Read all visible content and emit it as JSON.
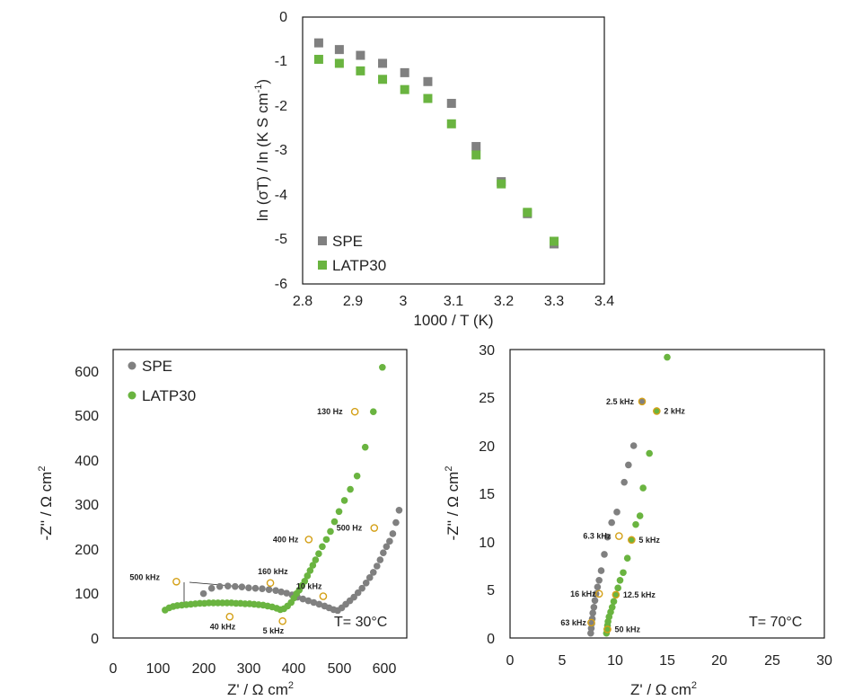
{
  "colors": {
    "spe": "#808080",
    "latp": "#6ab440",
    "marker_ring": "#d4a017",
    "frame": "#1a1a1a"
  },
  "chart_data": [
    {
      "id": "arrhenius",
      "type": "scatter",
      "marker": "square",
      "xlabel": "1000 / T (K)",
      "ylabel": "ln (σT) / ln (K S cm",
      "ylabel_sup": "-1",
      "ylabel_tail": ")",
      "xlim": [
        2.8,
        3.4
      ],
      "ylim": [
        -6,
        0
      ],
      "xticks": [
        "2.8",
        "2.9",
        "3",
        "3.1",
        "3.2",
        "3.3",
        "3.4"
      ],
      "yticks": [
        "0",
        "-1",
        "-2",
        "-3",
        "-4",
        "-5",
        "-6"
      ],
      "legend": [
        "SPE",
        "LATP30"
      ],
      "series": [
        {
          "name": "SPE",
          "color": "#808080",
          "x": [
            2.832,
            2.873,
            2.915,
            2.959,
            3.003,
            3.049,
            3.096,
            3.145,
            3.195,
            3.247,
            3.3
          ],
          "y": [
            -0.58,
            -0.73,
            -0.86,
            -1.04,
            -1.25,
            -1.45,
            -1.94,
            -2.91,
            -3.7,
            -4.42,
            -5.1
          ]
        },
        {
          "name": "LATP30",
          "color": "#6ab440",
          "x": [
            2.832,
            2.873,
            2.915,
            2.959,
            3.003,
            3.049,
            3.096,
            3.145,
            3.195,
            3.247,
            3.3
          ],
          "y": [
            -0.95,
            -1.04,
            -1.21,
            -1.4,
            -1.63,
            -1.83,
            -2.4,
            -3.1,
            -3.75,
            -4.39,
            -5.04
          ]
        }
      ]
    },
    {
      "id": "nyquist30",
      "type": "scatter",
      "marker": "circle",
      "xlabel": "Z' / Ω cm",
      "xlabel_sup": "2",
      "ylabel": "-Z'' / Ω cm",
      "ylabel_sup": "2",
      "xlim": [
        0,
        650
      ],
      "ylim": [
        0,
        650
      ],
      "xticks": [
        "0",
        "100",
        "200",
        "300",
        "400",
        "500",
        "600"
      ],
      "yticks": [
        "0",
        "100",
        "200",
        "300",
        "400",
        "500",
        "600"
      ],
      "legend": [
        "SPE",
        "LATP30"
      ],
      "temperature": "T= 30°C",
      "series": [
        {
          "name": "SPE",
          "color": "#808080",
          "x": [
            200,
            218,
            236,
            254,
            270,
            285,
            300,
            315,
            330,
            345,
            360,
            372,
            384,
            396,
            408,
            420,
            432,
            444,
            456,
            468,
            478,
            488,
            497,
            506,
            515,
            524,
            533,
            542,
            551,
            560,
            568,
            576,
            584,
            591,
            598,
            605,
            612,
            619,
            626,
            633
          ],
          "y": [
            100,
            112,
            116,
            117,
            116,
            115,
            113,
            112,
            111,
            109,
            107,
            104,
            101,
            97,
            92,
            88,
            84,
            80,
            76,
            72,
            68,
            64,
            62,
            68,
            76,
            84,
            92,
            102,
            112,
            124,
            136,
            148,
            162,
            176,
            192,
            206,
            218,
            235,
            260,
            288
          ]
        },
        {
          "name": "LATP30",
          "color": "#6ab440",
          "x": [
            115,
            124,
            133,
            142,
            152,
            162,
            172,
            182,
            192,
            202,
            212,
            222,
            232,
            242,
            252,
            262,
            272,
            282,
            292,
            302,
            312,
            322,
            332,
            342,
            352,
            362,
            370,
            378,
            386,
            394,
            400,
            406,
            412,
            418,
            424,
            430,
            436,
            442,
            448,
            455,
            463,
            472,
            481,
            490,
            500,
            512,
            525,
            540,
            558,
            576,
            596
          ],
          "y": [
            63,
            68,
            71,
            73,
            74,
            75,
            76,
            77,
            78,
            78,
            79,
            79,
            79,
            79,
            79,
            79,
            78,
            78,
            77,
            77,
            76,
            75,
            74,
            72,
            70,
            67,
            64,
            66,
            72,
            80,
            90,
            100,
            108,
            118,
            128,
            140,
            152,
            164,
            176,
            190,
            206,
            222,
            240,
            262,
            285,
            310,
            335,
            365,
            430,
            510,
            610
          ]
        }
      ],
      "annotations": [
        {
          "label": "500 kHz",
          "x": 140,
          "y": 127
        },
        {
          "label": "160 kHz",
          "x": 348,
          "y": 124
        },
        {
          "label": "10 kHz",
          "x": 465,
          "y": 94
        },
        {
          "label": "40 kHz",
          "x": 258,
          "y": 48
        },
        {
          "label": "5 kHz",
          "x": 375,
          "y": 38
        },
        {
          "label": "400 Hz",
          "x": 433,
          "y": 222
        },
        {
          "label": "500 Hz",
          "x": 578,
          "y": 248
        },
        {
          "label": "130 Hz",
          "x": 535,
          "y": 510
        }
      ]
    },
    {
      "id": "nyquist70",
      "type": "scatter",
      "marker": "circle",
      "xlabel": "Z' / Ω cm",
      "xlabel_sup": "2",
      "ylabel": "-Z'' / Ω cm",
      "ylabel_sup": "2",
      "xlim": [
        0,
        30
      ],
      "ylim": [
        0,
        30
      ],
      "xticks": [
        "0",
        "5",
        "10",
        "15",
        "20",
        "25",
        "30"
      ],
      "yticks": [
        "0",
        "5",
        "10",
        "15",
        "20",
        "25",
        "30"
      ],
      "temperature": "T= 70°C",
      "series": [
        {
          "name": "SPE",
          "color": "#808080",
          "x": [
            7.7,
            7.75,
            7.8,
            7.85,
            7.9,
            8.0,
            8.1,
            8.2,
            8.35,
            8.5,
            8.7,
            9.0,
            9.3,
            9.7,
            10.2,
            10.9,
            11.3,
            11.8,
            12.6
          ],
          "y": [
            0.5,
            1.0,
            1.5,
            2.0,
            2.6,
            3.2,
            3.9,
            4.6,
            5.3,
            6.0,
            7.0,
            8.7,
            10.5,
            12.0,
            13.1,
            16.2,
            18.0,
            20.0,
            24.6
          ]
        },
        {
          "name": "LATP30",
          "color": "#6ab440",
          "x": [
            9.2,
            9.25,
            9.3,
            9.35,
            9.45,
            9.6,
            9.75,
            9.9,
            10.1,
            10.3,
            10.5,
            10.8,
            11.2,
            11.6,
            12.0,
            12.4,
            12.7,
            13.3,
            14.0,
            15.0
          ],
          "y": [
            0.5,
            0.9,
            1.3,
            1.7,
            2.2,
            2.7,
            3.2,
            3.8,
            4.5,
            5.2,
            6.0,
            6.8,
            8.3,
            10.2,
            11.8,
            12.7,
            15.6,
            19.2,
            23.6,
            29.2
          ]
        }
      ],
      "annotations": [
        {
          "label": "2.5 kHz",
          "x": 12.6,
          "y": 24.6
        },
        {
          "label": "2 kHz",
          "x": 14.0,
          "y": 23.6
        },
        {
          "label": "6.3 kHz",
          "x": 10.4,
          "y": 10.6
        },
        {
          "label": "5 kHz",
          "x": 11.6,
          "y": 10.2
        },
        {
          "label": "16 kHz",
          "x": 8.5,
          "y": 4.6
        },
        {
          "label": "12.5 kHz",
          "x": 10.1,
          "y": 4.5
        },
        {
          "label": "63 kHz",
          "x": 7.75,
          "y": 1.6
        },
        {
          "label": "50 kHz",
          "x": 9.3,
          "y": 0.9
        }
      ]
    }
  ]
}
